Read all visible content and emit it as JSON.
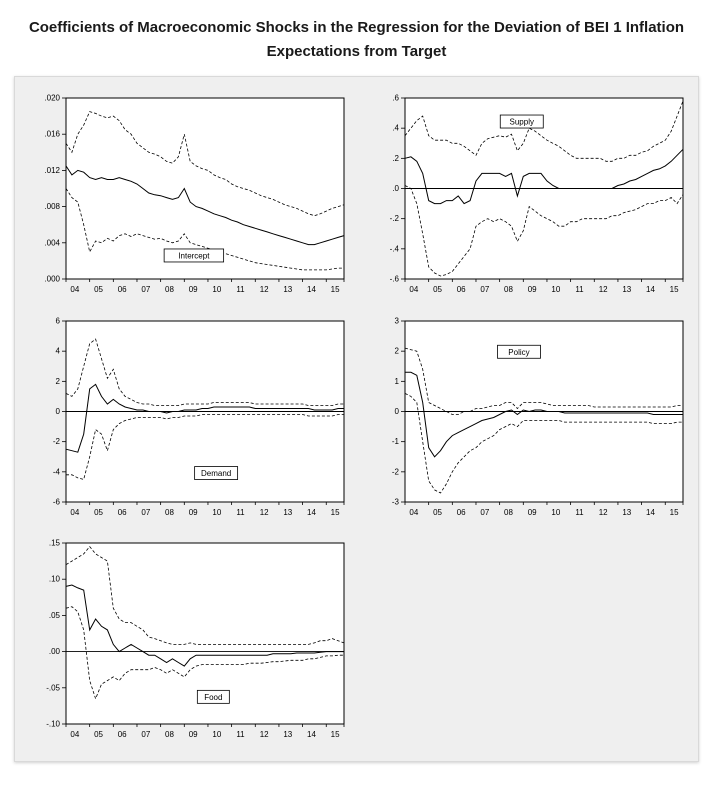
{
  "title": {
    "line1": "Coefficients of Macroeconomic Shocks in the Regression for the Deviation of BEI 1 Inflation",
    "line2": "Expectations from Target"
  },
  "chart_data": [
    {
      "type": "line",
      "name": "Intercept",
      "x_frequency": "quarterly",
      "x_range": "2004Q1-2015Q4",
      "x_tick_labels": [
        "04",
        "05",
        "06",
        "07",
        "08",
        "09",
        "10",
        "11",
        "12",
        "13",
        "14",
        "15"
      ],
      "ylim": [
        0.0,
        0.02
      ],
      "y_tick_values": [
        0.0,
        0.004,
        0.008,
        0.012,
        0.016,
        0.02
      ],
      "y_tick_labels": [
        ".000",
        ".004",
        ".008",
        ".012",
        ".016",
        ".020"
      ],
      "zero_line": false,
      "grid": false,
      "label_box": {
        "x": 0.46,
        "y": 0.87
      },
      "series": [
        {
          "name": "coefficient",
          "style": "solid",
          "values": [
            0.0125,
            0.0115,
            0.012,
            0.0118,
            0.0112,
            0.011,
            0.0112,
            0.011,
            0.011,
            0.0112,
            0.011,
            0.0108,
            0.0105,
            0.01,
            0.0095,
            0.0093,
            0.0092,
            0.009,
            0.0088,
            0.009,
            0.01,
            0.0085,
            0.008,
            0.0078,
            0.0075,
            0.0072,
            0.007,
            0.0068,
            0.0065,
            0.0063,
            0.006,
            0.0058,
            0.0056,
            0.0054,
            0.0052,
            0.005,
            0.0048,
            0.0046,
            0.0044,
            0.0042,
            0.004,
            0.0038,
            0.0038,
            0.004,
            0.0042,
            0.0044,
            0.0046,
            0.0048
          ]
        },
        {
          "name": "upper-band",
          "style": "dashed",
          "values": [
            0.015,
            0.014,
            0.016,
            0.017,
            0.0185,
            0.0183,
            0.018,
            0.0178,
            0.018,
            0.0175,
            0.0165,
            0.016,
            0.015,
            0.0145,
            0.014,
            0.0138,
            0.0135,
            0.013,
            0.0128,
            0.0135,
            0.016,
            0.013,
            0.0125,
            0.0122,
            0.012,
            0.0115,
            0.0112,
            0.011,
            0.0105,
            0.0102,
            0.01,
            0.0098,
            0.0095,
            0.0092,
            0.009,
            0.0088,
            0.0085,
            0.0082,
            0.008,
            0.0078,
            0.0075,
            0.0072,
            0.007,
            0.0072,
            0.0075,
            0.0078,
            0.008,
            0.0082
          ]
        },
        {
          "name": "lower-band",
          "style": "dashed",
          "values": [
            0.01,
            0.009,
            0.0085,
            0.006,
            0.003,
            0.0042,
            0.004,
            0.0045,
            0.0042,
            0.0048,
            0.005,
            0.0047,
            0.005,
            0.0048,
            0.0046,
            0.0044,
            0.0045,
            0.0042,
            0.004,
            0.0042,
            0.005,
            0.004,
            0.0038,
            0.0036,
            0.0034,
            0.0032,
            0.003,
            0.0028,
            0.0026,
            0.0024,
            0.0022,
            0.002,
            0.0018,
            0.0017,
            0.0016,
            0.0015,
            0.0014,
            0.0013,
            0.0012,
            0.0011,
            0.001,
            0.001,
            0.001,
            0.001,
            0.001,
            0.0011,
            0.0012,
            0.0012
          ]
        }
      ]
    },
    {
      "type": "line",
      "name": "Supply",
      "x_frequency": "quarterly",
      "x_range": "2004Q1-2015Q4",
      "x_tick_labels": [
        "04",
        "05",
        "06",
        "07",
        "08",
        "09",
        "10",
        "11",
        "12",
        "13",
        "14",
        "15"
      ],
      "ylim": [
        -0.6,
        0.6
      ],
      "y_tick_values": [
        -0.6,
        -0.4,
        -0.2,
        0.0,
        0.2,
        0.4,
        0.6
      ],
      "y_tick_labels": [
        "-.6",
        "-.4",
        "-.2",
        ".0",
        ".2",
        ".4",
        ".6"
      ],
      "zero_line": true,
      "grid": false,
      "label_box": {
        "x": 0.42,
        "y": 0.13
      },
      "series": [
        {
          "name": "coefficient",
          "style": "solid",
          "values": [
            0.2,
            0.21,
            0.18,
            0.1,
            -0.08,
            -0.1,
            -0.1,
            -0.08,
            -0.08,
            -0.05,
            -0.1,
            -0.08,
            0.05,
            0.1,
            0.1,
            0.1,
            0.1,
            0.08,
            0.1,
            -0.05,
            0.08,
            0.1,
            0.1,
            0.1,
            0.05,
            0.02,
            0.0,
            0.0,
            0.0,
            0.0,
            0.0,
            0.0,
            0.0,
            0.0,
            0.0,
            0.0,
            0.02,
            0.03,
            0.05,
            0.06,
            0.08,
            0.1,
            0.12,
            0.13,
            0.15,
            0.18,
            0.22,
            0.26
          ]
        },
        {
          "name": "upper-band",
          "style": "dashed",
          "values": [
            0.35,
            0.4,
            0.45,
            0.48,
            0.35,
            0.32,
            0.32,
            0.32,
            0.3,
            0.3,
            0.28,
            0.25,
            0.22,
            0.3,
            0.33,
            0.34,
            0.35,
            0.34,
            0.36,
            0.25,
            0.3,
            0.4,
            0.38,
            0.35,
            0.32,
            0.3,
            0.28,
            0.25,
            0.22,
            0.2,
            0.2,
            0.2,
            0.2,
            0.2,
            0.18,
            0.18,
            0.2,
            0.2,
            0.22,
            0.22,
            0.24,
            0.25,
            0.28,
            0.3,
            0.32,
            0.38,
            0.48,
            0.58
          ]
        },
        {
          "name": "lower-band",
          "style": "dashed",
          "values": [
            0.02,
            0.0,
            -0.1,
            -0.3,
            -0.52,
            -0.56,
            -0.58,
            -0.57,
            -0.55,
            -0.5,
            -0.45,
            -0.4,
            -0.25,
            -0.22,
            -0.2,
            -0.22,
            -0.2,
            -0.22,
            -0.25,
            -0.35,
            -0.28,
            -0.12,
            -0.15,
            -0.18,
            -0.2,
            -0.22,
            -0.25,
            -0.25,
            -0.22,
            -0.22,
            -0.2,
            -0.2,
            -0.2,
            -0.2,
            -0.2,
            -0.18,
            -0.18,
            -0.16,
            -0.15,
            -0.14,
            -0.12,
            -0.1,
            -0.1,
            -0.08,
            -0.08,
            -0.06,
            -0.1,
            -0.04
          ]
        }
      ]
    },
    {
      "type": "line",
      "name": "Demand",
      "x_frequency": "quarterly",
      "x_range": "2004Q1-2015Q4",
      "x_tick_labels": [
        "04",
        "05",
        "06",
        "07",
        "08",
        "09",
        "10",
        "11",
        "12",
        "13",
        "14",
        "15"
      ],
      "ylim": [
        -6,
        6
      ],
      "y_tick_values": [
        -6,
        -4,
        -2,
        0,
        2,
        4,
        6
      ],
      "y_tick_labels": [
        "-6",
        "-4",
        "-2",
        "0",
        "2",
        "4",
        "6"
      ],
      "zero_line": true,
      "grid": false,
      "label_box": {
        "x": 0.54,
        "y": 0.84
      },
      "series": [
        {
          "name": "coefficient",
          "style": "solid",
          "values": [
            -2.5,
            -2.6,
            -2.7,
            -1.5,
            1.5,
            1.8,
            1.0,
            0.5,
            0.8,
            0.5,
            0.3,
            0.2,
            0.1,
            0.1,
            0.0,
            0.0,
            0.0,
            -0.1,
            0.0,
            0.0,
            0.1,
            0.1,
            0.1,
            0.2,
            0.2,
            0.3,
            0.3,
            0.3,
            0.3,
            0.3,
            0.3,
            0.3,
            0.2,
            0.2,
            0.2,
            0.2,
            0.2,
            0.2,
            0.2,
            0.2,
            0.2,
            0.2,
            0.1,
            0.1,
            0.1,
            0.1,
            0.2,
            0.2
          ]
        },
        {
          "name": "upper-band",
          "style": "dashed",
          "values": [
            1.2,
            1.0,
            1.5,
            3.0,
            4.5,
            4.8,
            3.5,
            2.2,
            2.8,
            1.5,
            1.0,
            0.8,
            0.6,
            0.5,
            0.5,
            0.4,
            0.4,
            0.4,
            0.4,
            0.4,
            0.5,
            0.5,
            0.5,
            0.5,
            0.5,
            0.6,
            0.6,
            0.6,
            0.6,
            0.6,
            0.6,
            0.6,
            0.5,
            0.5,
            0.5,
            0.5,
            0.5,
            0.5,
            0.5,
            0.5,
            0.5,
            0.4,
            0.4,
            0.4,
            0.4,
            0.4,
            0.5,
            0.5
          ]
        },
        {
          "name": "lower-band",
          "style": "dashed",
          "values": [
            -4.2,
            -4.2,
            -4.4,
            -4.5,
            -3.0,
            -1.2,
            -1.5,
            -2.6,
            -1.2,
            -0.8,
            -0.6,
            -0.5,
            -0.4,
            -0.4,
            -0.4,
            -0.4,
            -0.4,
            -0.5,
            -0.4,
            -0.4,
            -0.3,
            -0.3,
            -0.3,
            -0.2,
            -0.2,
            -0.2,
            -0.2,
            -0.2,
            -0.2,
            -0.2,
            -0.2,
            -0.2,
            -0.2,
            -0.2,
            -0.2,
            -0.2,
            -0.2,
            -0.2,
            -0.2,
            -0.2,
            -0.2,
            -0.3,
            -0.3,
            -0.3,
            -0.3,
            -0.3,
            -0.2,
            -0.2
          ]
        }
      ]
    },
    {
      "type": "line",
      "name": "Policy",
      "x_frequency": "quarterly",
      "x_range": "2004Q1-2015Q4",
      "x_tick_labels": [
        "04",
        "05",
        "06",
        "07",
        "08",
        "09",
        "10",
        "11",
        "12",
        "13",
        "14",
        "15"
      ],
      "ylim": [
        -3,
        3
      ],
      "y_tick_values": [
        -3,
        -2,
        -1,
        0,
        1,
        2,
        3
      ],
      "y_tick_labels": [
        "-3",
        "-2",
        "-1",
        "0",
        "1",
        "2",
        "3"
      ],
      "zero_line": true,
      "grid": false,
      "label_box": {
        "x": 0.41,
        "y": 0.17
      },
      "series": [
        {
          "name": "coefficient",
          "style": "solid",
          "values": [
            1.3,
            1.3,
            1.2,
            0.3,
            -1.2,
            -1.5,
            -1.3,
            -1.0,
            -0.8,
            -0.7,
            -0.6,
            -0.5,
            -0.4,
            -0.3,
            -0.25,
            -0.2,
            -0.1,
            0.0,
            0.05,
            -0.1,
            0.05,
            0.0,
            0.05,
            0.05,
            0.0,
            0.0,
            0.0,
            -0.05,
            -0.05,
            -0.05,
            -0.05,
            -0.05,
            -0.05,
            -0.05,
            -0.05,
            -0.05,
            -0.05,
            -0.05,
            -0.05,
            -0.05,
            -0.05,
            -0.05,
            -0.1,
            -0.1,
            -0.1,
            -0.1,
            -0.1,
            -0.1
          ]
        },
        {
          "name": "upper-band",
          "style": "dashed",
          "values": [
            2.1,
            2.05,
            2.0,
            1.4,
            0.3,
            0.2,
            0.1,
            0.0,
            -0.1,
            -0.1,
            0.0,
            0.0,
            0.1,
            0.1,
            0.15,
            0.2,
            0.2,
            0.3,
            0.3,
            0.1,
            0.3,
            0.3,
            0.3,
            0.3,
            0.25,
            0.2,
            0.2,
            0.2,
            0.2,
            0.2,
            0.2,
            0.2,
            0.15,
            0.15,
            0.15,
            0.15,
            0.15,
            0.15,
            0.15,
            0.15,
            0.15,
            0.15,
            0.15,
            0.15,
            0.15,
            0.15,
            0.2,
            0.2
          ]
        },
        {
          "name": "lower-band",
          "style": "dashed",
          "values": [
            0.6,
            0.5,
            0.3,
            -1.0,
            -2.3,
            -2.6,
            -2.7,
            -2.4,
            -2.0,
            -1.7,
            -1.5,
            -1.3,
            -1.2,
            -1.0,
            -0.9,
            -0.8,
            -0.6,
            -0.5,
            -0.4,
            -0.5,
            -0.3,
            -0.3,
            -0.3,
            -0.3,
            -0.3,
            -0.3,
            -0.3,
            -0.35,
            -0.35,
            -0.35,
            -0.35,
            -0.35,
            -0.35,
            -0.35,
            -0.35,
            -0.35,
            -0.35,
            -0.35,
            -0.35,
            -0.35,
            -0.35,
            -0.35,
            -0.4,
            -0.4,
            -0.4,
            -0.4,
            -0.35,
            -0.35
          ]
        }
      ]
    },
    {
      "type": "line",
      "name": "Food",
      "x_frequency": "quarterly",
      "x_range": "2004Q1-2015Q4",
      "x_tick_labels": [
        "04",
        "05",
        "06",
        "07",
        "08",
        "09",
        "10",
        "11",
        "12",
        "13",
        "14",
        "15"
      ],
      "ylim": [
        -0.1,
        0.15
      ],
      "y_tick_values": [
        -0.1,
        -0.05,
        0.0,
        0.05,
        0.1,
        0.15
      ],
      "y_tick_labels": [
        "-.10",
        "-.05",
        ".00",
        ".05",
        ".10",
        ".15"
      ],
      "zero_line": true,
      "grid": false,
      "label_box": {
        "x": 0.53,
        "y": 0.85
      },
      "series": [
        {
          "name": "coefficient",
          "style": "solid",
          "values": [
            0.09,
            0.092,
            0.088,
            0.085,
            0.03,
            0.045,
            0.035,
            0.03,
            0.01,
            0.0,
            0.005,
            0.01,
            0.005,
            0.0,
            -0.005,
            -0.005,
            -0.01,
            -0.015,
            -0.01,
            -0.015,
            -0.02,
            -0.01,
            -0.005,
            -0.005,
            -0.005,
            -0.005,
            -0.005,
            -0.005,
            -0.005,
            -0.005,
            -0.005,
            -0.005,
            -0.005,
            -0.005,
            -0.005,
            -0.003,
            -0.003,
            -0.003,
            -0.003,
            -0.002,
            -0.002,
            -0.002,
            -0.002,
            -0.001,
            0.0,
            0.0,
            0.0,
            0.0
          ]
        },
        {
          "name": "upper-band",
          "style": "dashed",
          "values": [
            0.12,
            0.125,
            0.13,
            0.135,
            0.145,
            0.135,
            0.13,
            0.125,
            0.06,
            0.045,
            0.04,
            0.04,
            0.035,
            0.03,
            0.02,
            0.018,
            0.015,
            0.012,
            0.01,
            0.01,
            0.01,
            0.012,
            0.01,
            0.01,
            0.01,
            0.01,
            0.01,
            0.01,
            0.01,
            0.01,
            0.01,
            0.01,
            0.01,
            0.01,
            0.01,
            0.01,
            0.01,
            0.01,
            0.01,
            0.01,
            0.01,
            0.01,
            0.012,
            0.015,
            0.015,
            0.018,
            0.015,
            0.012
          ]
        },
        {
          "name": "lower-band",
          "style": "dashed",
          "values": [
            0.06,
            0.062,
            0.055,
            0.03,
            -0.04,
            -0.065,
            -0.045,
            -0.04,
            -0.035,
            -0.04,
            -0.03,
            -0.025,
            -0.025,
            -0.025,
            -0.025,
            -0.022,
            -0.025,
            -0.03,
            -0.025,
            -0.03,
            -0.035,
            -0.025,
            -0.02,
            -0.018,
            -0.018,
            -0.018,
            -0.018,
            -0.018,
            -0.018,
            -0.018,
            -0.018,
            -0.016,
            -0.016,
            -0.016,
            -0.015,
            -0.014,
            -0.014,
            -0.013,
            -0.012,
            -0.012,
            -0.012,
            -0.01,
            -0.01,
            -0.008,
            -0.006,
            -0.006,
            -0.005,
            -0.005
          ]
        }
      ]
    }
  ]
}
